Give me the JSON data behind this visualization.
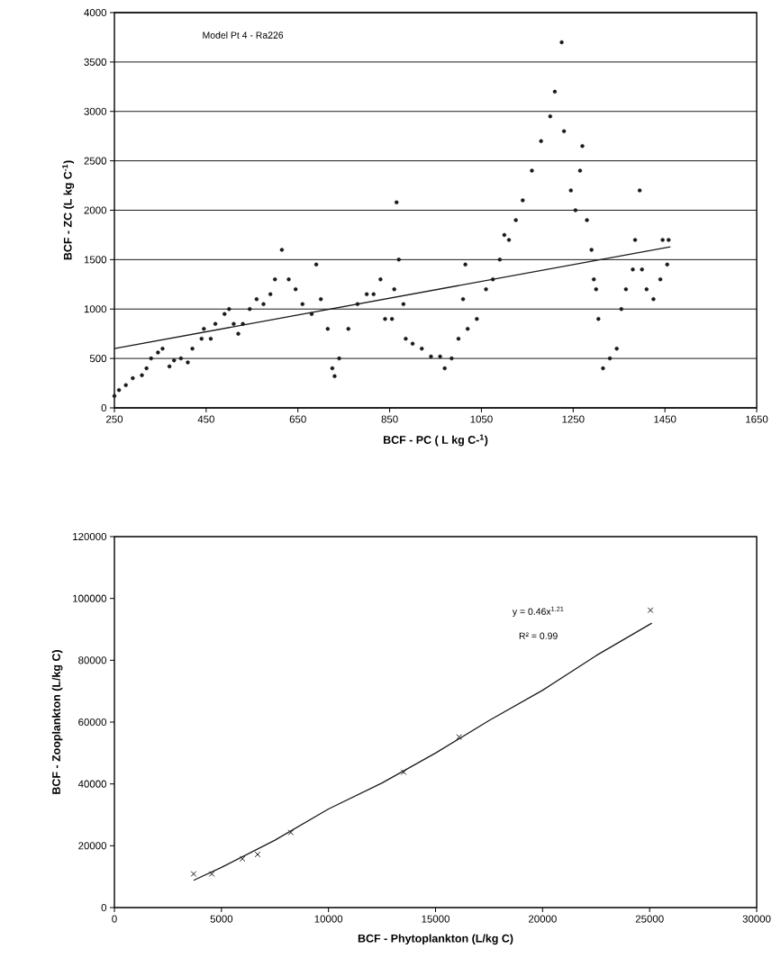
{
  "chart_data": [
    {
      "type": "scatter",
      "xlabel": "BCF - PC ( L kg C-$^{1}$)",
      "ylabel": "BCF - ZC (L kg C$^{-1}$)",
      "annotations": [
        "Model Pt 4 - Ra226"
      ],
      "xlim": [
        250,
        1650
      ],
      "xticks": [
        250,
        450,
        650,
        850,
        1050,
        1250,
        1450,
        1650
      ],
      "ylim": [
        0,
        4000
      ],
      "yticks": [
        0,
        500,
        1000,
        1500,
        2000,
        2500,
        3000,
        3500,
        4000
      ],
      "grid": "y",
      "series": [
        {
          "type": "scatter",
          "marker": "circle",
          "color": "#1a1a1a",
          "x": [
            250,
            260,
            275,
            290,
            310,
            320,
            330,
            345,
            355,
            370,
            380,
            395,
            410,
            420,
            440,
            445,
            460,
            470,
            490,
            500,
            510,
            520,
            530,
            545,
            560,
            575,
            590,
            600,
            615,
            630,
            645,
            660,
            680,
            690,
            700,
            715,
            725,
            730,
            740,
            760,
            780,
            800,
            815,
            830,
            840,
            855,
            860,
            865,
            870,
            880,
            885,
            900,
            920,
            940,
            960,
            970,
            985,
            1000,
            1010,
            1015,
            1020,
            1040,
            1060,
            1075,
            1090,
            1100,
            1110,
            1125,
            1140,
            1160,
            1180,
            1200,
            1210,
            1225,
            1230,
            1245,
            1255,
            1265,
            1270,
            1280,
            1290,
            1295,
            1300,
            1305,
            1315,
            1330,
            1345,
            1355,
            1365,
            1380,
            1385,
            1395,
            1400,
            1410,
            1425,
            1440,
            1445,
            1455,
            1458
          ],
          "values": [
            120,
            180,
            230,
            300,
            330,
            400,
            500,
            560,
            600,
            420,
            480,
            500,
            460,
            600,
            700,
            800,
            700,
            850,
            950,
            1000,
            850,
            750,
            850,
            1000,
            1100,
            1050,
            1150,
            1300,
            1600,
            1300,
            1200,
            1050,
            950,
            1450,
            1100,
            800,
            400,
            320,
            500,
            800,
            1050,
            1150,
            1150,
            1300,
            900,
            900,
            1200,
            2080,
            1500,
            1050,
            700,
            650,
            600,
            520,
            520,
            400,
            500,
            700,
            1100,
            1450,
            800,
            900,
            1200,
            1300,
            1500,
            1750,
            1700,
            1900,
            2100,
            2400,
            2700,
            2950,
            3200,
            3700,
            2800,
            2200,
            2000,
            2400,
            2650,
            1900,
            1600,
            1300,
            1200,
            900,
            400,
            500,
            600,
            1000,
            1200,
            1400,
            1700,
            2200,
            1400,
            1200,
            1100,
            1300,
            1700,
            1450,
            1700
          ]
        },
        {
          "type": "line",
          "marker": "none",
          "color": "#1a1a1a",
          "x": [
            250,
            1462
          ],
          "values": [
            600,
            1630
          ]
        }
      ]
    },
    {
      "type": "scatter",
      "xlabel": "BCF - Phytoplankton (L/kg C)",
      "ylabel": "BCF - Zooplankton (L/kg C)",
      "annotations": [
        "y = 0.46x$^{1.21}$",
        "R² = 0.99"
      ],
      "xlim": [
        0,
        30000
      ],
      "xticks": [
        0,
        5000,
        10000,
        15000,
        20000,
        25000,
        30000
      ],
      "ylim": [
        0,
        120000
      ],
      "yticks": [
        0,
        20000,
        40000,
        60000,
        80000,
        100000,
        120000
      ],
      "grid": false,
      "series": [
        {
          "type": "scatter",
          "marker": "cross",
          "color": "#1a1a1a",
          "x": [
            3700,
            4550,
            5980,
            6690,
            8240,
            13510,
            16100,
            25040
          ],
          "values": [
            10900,
            10900,
            15800,
            17200,
            24300,
            43800,
            55200,
            96200
          ]
        },
        {
          "type": "line",
          "marker": "none",
          "color": "#1a1a1a",
          "x": [
            3700,
            5000,
            7500,
            10000,
            12500,
            15000,
            17500,
            20000,
            22500,
            25100
          ],
          "values": [
            8800,
            13000,
            21800,
            31900,
            40300,
            50000,
            60500,
            70300,
            81500,
            92000
          ]
        }
      ]
    }
  ]
}
